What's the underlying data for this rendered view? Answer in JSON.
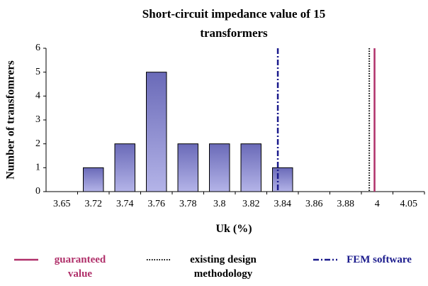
{
  "chart_data": {
    "type": "bar",
    "title": "Short-circuit impedance value of 15 transformers",
    "x_label": "Uk (%)",
    "y_label": "Number of transfomrers",
    "categories": [
      3.65,
      3.72,
      3.74,
      3.76,
      3.78,
      3.8,
      3.82,
      3.84,
      3.86,
      3.88,
      4,
      4.05
    ],
    "values": [
      0,
      1,
      2,
      5,
      2,
      2,
      2,
      1,
      0,
      0,
      0,
      0
    ],
    "color": "#b4b4e8",
    "ylim": [
      0,
      6
    ],
    "yticks": [
      0,
      1,
      2,
      3,
      4,
      5,
      6
    ],
    "reference_lines": [
      {
        "name": "guaranteed value",
        "color": "#b0306a",
        "x": 3.99,
        "style": "solid"
      },
      {
        "name": "existing design methodology",
        "color": "#000000",
        "x": 3.97,
        "style": "dotted"
      },
      {
        "name": "FEM software",
        "color": "#1a1a8c",
        "x": 3.837,
        "style": "dashdot"
      }
    ]
  }
}
